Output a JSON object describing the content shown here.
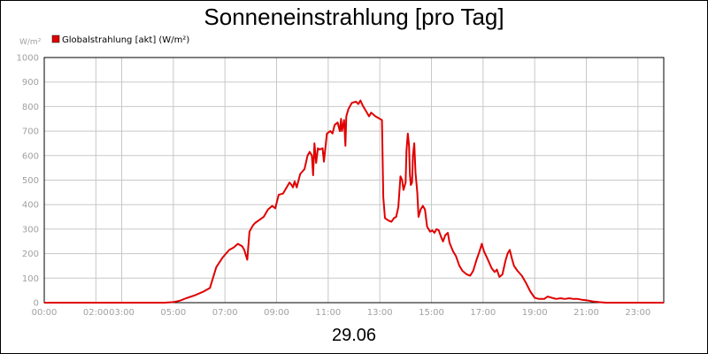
{
  "chart_data": {
    "type": "line",
    "title": "Sonneneinstrahlung [pro Tag]",
    "y_unit": "W/m²",
    "date_label": "29.06",
    "ylim": [
      0,
      1000
    ],
    "xlim": [
      "00:00",
      "24:00"
    ],
    "y_ticks": [
      0,
      100,
      200,
      300,
      400,
      500,
      600,
      700,
      800,
      900,
      1000
    ],
    "y_tick_labels": [
      "0",
      "100",
      "200",
      "300",
      "400",
      "500",
      "600",
      "700",
      "800",
      "900",
      "1000"
    ],
    "x_tick_labels": [
      {
        "at": "00:00",
        "label": "00:00"
      },
      {
        "at": "02:00",
        "label": "02:00"
      },
      {
        "at": "03:00",
        "label": "03:00"
      },
      {
        "at": "05:00",
        "label": "05:00"
      },
      {
        "at": "07:00",
        "label": "07:00"
      },
      {
        "at": "09:00",
        "label": "09:00"
      },
      {
        "at": "11:00",
        "label": "11:00"
      },
      {
        "at": "13:00",
        "label": "13:00"
      },
      {
        "at": "15:00",
        "label": "15:00"
      },
      {
        "at": "17:00",
        "label": "17:00"
      },
      {
        "at": "19:00",
        "label": "19:00"
      },
      {
        "at": "21:00",
        "label": "21:00"
      },
      {
        "at": "23:00",
        "label": "23:00"
      }
    ],
    "grid": true,
    "legend_position": "top-left",
    "series": [
      {
        "name": "Globalstrahlung [akt] (W/m²)",
        "color": "#e00000",
        "points": [
          [
            "00:00",
            0
          ],
          [
            "04:40",
            0
          ],
          [
            "05:00",
            2
          ],
          [
            "05:15",
            8
          ],
          [
            "05:30",
            18
          ],
          [
            "05:50",
            30
          ],
          [
            "06:10",
            45
          ],
          [
            "06:25",
            60
          ],
          [
            "06:40",
            145
          ],
          [
            "06:55",
            185
          ],
          [
            "07:10",
            215
          ],
          [
            "07:20",
            225
          ],
          [
            "07:30",
            240
          ],
          [
            "07:40",
            230
          ],
          [
            "07:45",
            215
          ],
          [
            "07:52",
            175
          ],
          [
            "07:57",
            290
          ],
          [
            "08:05",
            315
          ],
          [
            "08:10",
            325
          ],
          [
            "08:30",
            350
          ],
          [
            "08:40",
            380
          ],
          [
            "08:50",
            395
          ],
          [
            "08:57",
            385
          ],
          [
            "09:05",
            440
          ],
          [
            "09:15",
            445
          ],
          [
            "09:25",
            475
          ],
          [
            "09:30",
            490
          ],
          [
            "09:35",
            480
          ],
          [
            "09:38",
            470
          ],
          [
            "09:42",
            495
          ],
          [
            "09:47",
            470
          ],
          [
            "09:55",
            525
          ],
          [
            "10:05",
            545
          ],
          [
            "10:12",
            600
          ],
          [
            "10:17",
            615
          ],
          [
            "10:22",
            600
          ],
          [
            "10:25",
            520
          ],
          [
            "10:28",
            650
          ],
          [
            "10:32",
            570
          ],
          [
            "10:36",
            630
          ],
          [
            "10:40",
            625
          ],
          [
            "10:47",
            630
          ],
          [
            "10:50",
            575
          ],
          [
            "10:57",
            690
          ],
          [
            "11:05",
            700
          ],
          [
            "11:10",
            690
          ],
          [
            "11:15",
            725
          ],
          [
            "11:22",
            735
          ],
          [
            "11:27",
            700
          ],
          [
            "11:30",
            750
          ],
          [
            "11:32",
            700
          ],
          [
            "11:37",
            745
          ],
          [
            "11:40",
            640
          ],
          [
            "11:42",
            760
          ],
          [
            "11:47",
            790
          ],
          [
            "11:55",
            815
          ],
          [
            "12:05",
            820
          ],
          [
            "12:10",
            810
          ],
          [
            "12:15",
            825
          ],
          [
            "12:20",
            805
          ],
          [
            "12:30",
            775
          ],
          [
            "12:35",
            760
          ],
          [
            "12:40",
            775
          ],
          [
            "12:50",
            760
          ],
          [
            "13:00",
            750
          ],
          [
            "13:05",
            745
          ],
          [
            "13:08",
            430
          ],
          [
            "13:12",
            345
          ],
          [
            "13:20",
            335
          ],
          [
            "13:27",
            330
          ],
          [
            "13:33",
            345
          ],
          [
            "13:38",
            350
          ],
          [
            "13:43",
            390
          ],
          [
            "13:48",
            515
          ],
          [
            "13:52",
            500
          ],
          [
            "13:55",
            460
          ],
          [
            "14:00",
            490
          ],
          [
            "14:02",
            620
          ],
          [
            "14:05",
            690
          ],
          [
            "14:08",
            640
          ],
          [
            "14:10",
            520
          ],
          [
            "14:12",
            480
          ],
          [
            "14:15",
            490
          ],
          [
            "14:17",
            600
          ],
          [
            "14:20",
            650
          ],
          [
            "14:23",
            530
          ],
          [
            "14:27",
            450
          ],
          [
            "14:30",
            350
          ],
          [
            "14:35",
            380
          ],
          [
            "14:40",
            395
          ],
          [
            "14:45",
            380
          ],
          [
            "14:50",
            310
          ],
          [
            "14:57",
            290
          ],
          [
            "15:02",
            295
          ],
          [
            "15:07",
            285
          ],
          [
            "15:12",
            300
          ],
          [
            "15:17",
            295
          ],
          [
            "15:22",
            270
          ],
          [
            "15:27",
            250
          ],
          [
            "15:32",
            275
          ],
          [
            "15:38",
            285
          ],
          [
            "15:42",
            245
          ],
          [
            "15:50",
            210
          ],
          [
            "15:57",
            190
          ],
          [
            "16:05",
            150
          ],
          [
            "16:12",
            130
          ],
          [
            "16:22",
            115
          ],
          [
            "16:30",
            110
          ],
          [
            "16:37",
            130
          ],
          [
            "16:45",
            175
          ],
          [
            "16:52",
            210
          ],
          [
            "16:57",
            240
          ],
          [
            "17:02",
            210
          ],
          [
            "17:10",
            180
          ],
          [
            "17:20",
            140
          ],
          [
            "17:27",
            125
          ],
          [
            "17:32",
            135
          ],
          [
            "17:38",
            105
          ],
          [
            "17:45",
            115
          ],
          [
            "17:52",
            170
          ],
          [
            "17:57",
            200
          ],
          [
            "18:02",
            215
          ],
          [
            "18:07",
            180
          ],
          [
            "18:12",
            150
          ],
          [
            "18:20",
            130
          ],
          [
            "18:30",
            110
          ],
          [
            "18:40",
            80
          ],
          [
            "18:50",
            45
          ],
          [
            "19:00",
            20
          ],
          [
            "19:10",
            15
          ],
          [
            "19:22",
            15
          ],
          [
            "19:30",
            25
          ],
          [
            "19:40",
            20
          ],
          [
            "19:50",
            15
          ],
          [
            "20:00",
            18
          ],
          [
            "20:10",
            15
          ],
          [
            "20:20",
            18
          ],
          [
            "20:30",
            15
          ],
          [
            "20:40",
            15
          ],
          [
            "20:50",
            12
          ],
          [
            "21:00",
            10
          ],
          [
            "21:15",
            5
          ],
          [
            "21:30",
            2
          ],
          [
            "21:45",
            0
          ],
          [
            "24:00",
            0
          ]
        ]
      }
    ]
  }
}
